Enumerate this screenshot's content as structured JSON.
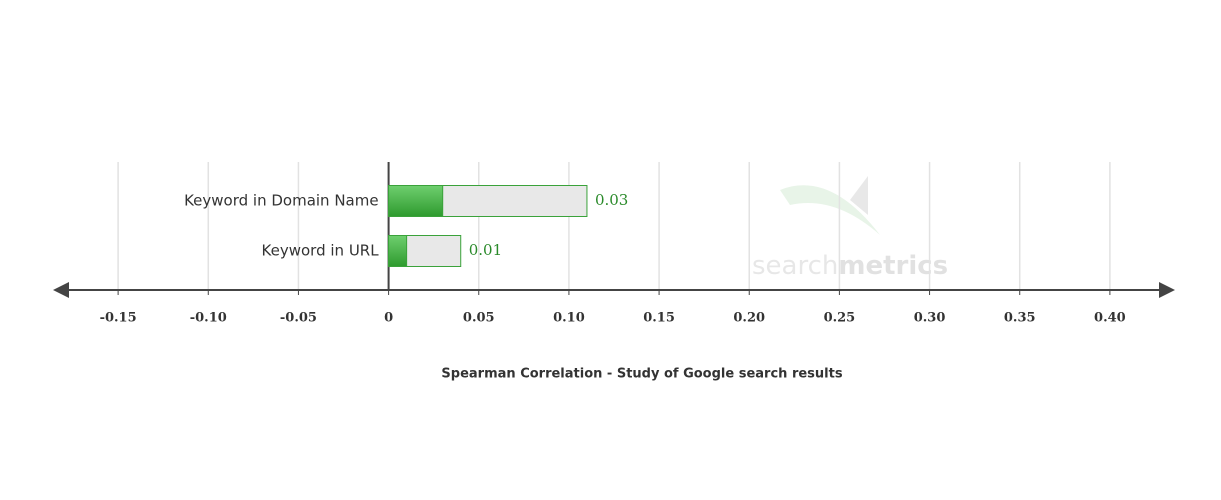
{
  "chart_data": {
    "type": "bar",
    "orientation": "horizontal",
    "title": "Spearman Correlation - Study of Google search results",
    "categories": [
      "Keyword in Domain Name",
      "Keyword in URL"
    ],
    "values": [
      0.03,
      0.01
    ],
    "color": "#3aa23a",
    "background_values": [
      0.11,
      0.04
    ],
    "background_color": "#e8e8e8",
    "xlim": [
      -0.185,
      0.435
    ],
    "xticks": [
      -0.15,
      {
        "value": -0.1,
        "label": "-0.10"
      },
      -0.05,
      0,
      0.05,
      {
        "value": 0.1,
        "label": "0.10"
      },
      0.15,
      {
        "value": 0.2,
        "label": "0.20"
      },
      0.25,
      {
        "value": 0.3,
        "label": "0.30"
      },
      0.35,
      {
        "value": 0.4,
        "label": "0.40"
      }
    ],
    "grid": true,
    "watermark": [
      "search",
      "metrics"
    ]
  }
}
